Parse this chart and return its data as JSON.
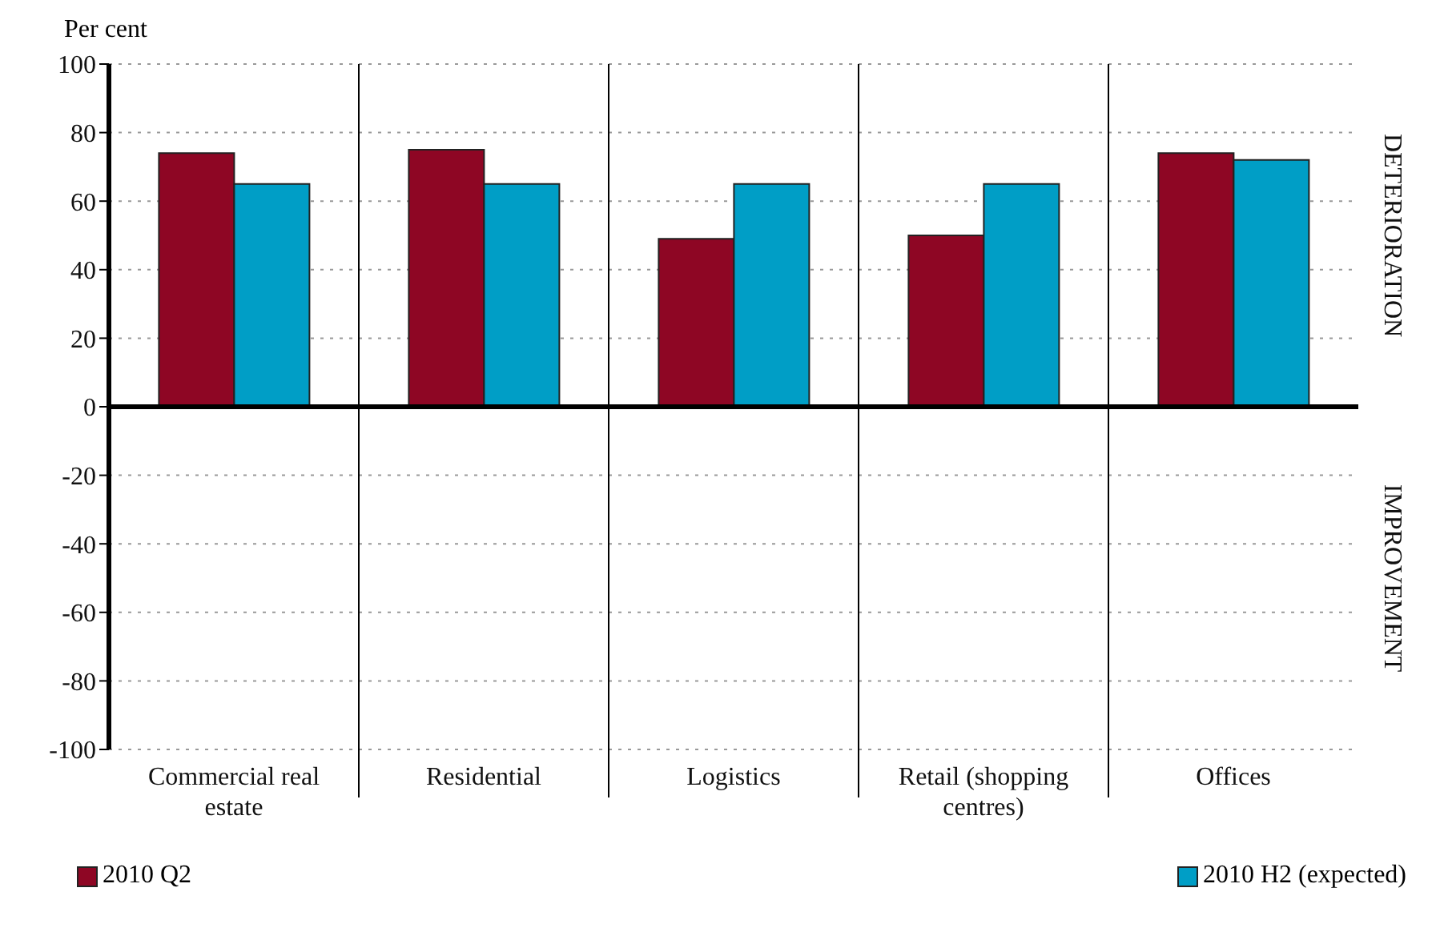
{
  "chart_data": {
    "type": "bar",
    "ylabel": "Per cent",
    "categories": [
      "Commercial real estate",
      "Residential",
      "Logistics",
      "Retail (shopping centres)",
      "Offices"
    ],
    "series": [
      {
        "name": "2010 Q2",
        "color": "#8e0624",
        "values": [
          74,
          75,
          49,
          50,
          74
        ]
      },
      {
        "name": "2010 H2 (expected)",
        "color": "#009ec6",
        "values": [
          65,
          65,
          65,
          65,
          72
        ]
      }
    ],
    "ylim": [
      -100,
      100
    ],
    "yticks": [
      -100,
      -80,
      -60,
      -40,
      -20,
      0,
      20,
      40,
      60,
      80,
      100
    ],
    "ref_lines": [
      {
        "axis": "y",
        "value": 0,
        "color": "#000000"
      }
    ],
    "annotations": [
      "DETERIORATION",
      "IMPROVEMENT"
    ],
    "grid": true,
    "legend": "bottom"
  }
}
